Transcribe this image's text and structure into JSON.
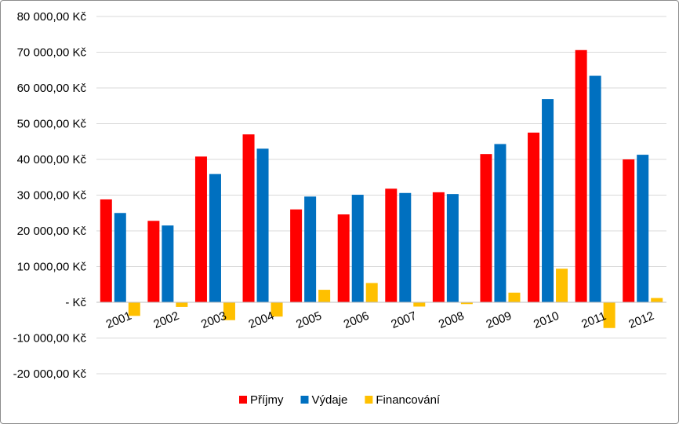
{
  "chart_data": {
    "type": "bar",
    "title": "",
    "xlabel": "",
    "ylabel": "",
    "ylim": [
      -20000,
      80000
    ],
    "y_ticks": [
      80000,
      70000,
      60000,
      50000,
      40000,
      30000,
      20000,
      10000,
      0,
      -10000,
      -20000
    ],
    "y_tick_labels": [
      "80 000,00 Kč",
      "70 000,00 Kč",
      "60 000,00 Kč",
      "50 000,00 Kč",
      "40 000,00 Kč",
      "30 000,00 Kč",
      "20 000,00 Kč",
      "10 000,00 Kč",
      "-   Kč",
      "-10 000,00 Kč",
      "-20 000,00 Kč"
    ],
    "grid": true,
    "legend_position": "bottom",
    "categories": [
      "2001",
      "2002",
      "2003",
      "2004",
      "2005",
      "2006",
      "2007",
      "2008",
      "2009",
      "2010",
      "2011",
      "2012"
    ],
    "series": [
      {
        "name": "Příjmy",
        "color": "#ff0000",
        "values": [
          28800,
          22800,
          40800,
          47000,
          26000,
          24600,
          31800,
          30800,
          41500,
          47500,
          70600,
          40000
        ]
      },
      {
        "name": "Výdaje",
        "color": "#0070c0",
        "values": [
          25000,
          21500,
          35900,
          43000,
          29600,
          30100,
          30600,
          30300,
          44300,
          56900,
          63400,
          41300
        ]
      },
      {
        "name": "Financování",
        "color": "#ffc000",
        "values": [
          -3800,
          -1300,
          -5000,
          -4000,
          3500,
          5400,
          -1200,
          -500,
          2700,
          9400,
          -7200,
          1200
        ]
      }
    ]
  }
}
